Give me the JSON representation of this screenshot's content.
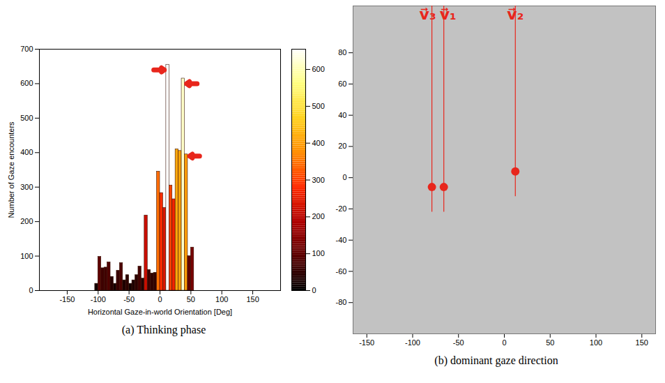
{
  "chart_data": [
    {
      "type": "histogram",
      "title": "(a) Thinking phase",
      "x_label": "Horizontal Gaze-in-world Orientation [Deg]",
      "y_label": "Number of Gaze encounters",
      "bins": [
        -105,
        -100,
        -95,
        -90,
        -85,
        -80,
        -75,
        -70,
        -65,
        -60,
        -55,
        -50,
        -45,
        -40,
        -35,
        -30,
        -25,
        -20,
        -15,
        -10,
        -5,
        0,
        5,
        10,
        15,
        20,
        25,
        30,
        35,
        40,
        45,
        50,
        55
      ],
      "values": [
        20,
        98,
        65,
        67,
        82,
        40,
        20,
        58,
        80,
        30,
        45,
        20,
        30,
        45,
        70,
        35,
        218,
        60,
        50,
        52,
        345,
        283,
        240,
        655,
        305,
        265,
        410,
        405,
        615,
        395,
        100,
        125
      ],
      "xlim": [
        -195,
        195
      ],
      "xticks": [
        -150,
        -100,
        -50,
        0,
        50,
        100,
        150
      ],
      "ylim": [
        0,
        700
      ],
      "yticks": [
        0,
        100,
        200,
        300,
        400,
        500,
        600,
        700
      ],
      "colorbar": {
        "range": [
          0,
          655
        ],
        "ticks": [
          0,
          100,
          200,
          300,
          400,
          500,
          600
        ]
      },
      "arrows": [
        {
          "x1": -10,
          "x2": 7,
          "y": 640
        },
        {
          "x1": 60,
          "x2": 43,
          "y": 600
        },
        {
          "x1": 64,
          "x2": 48,
          "y": 390
        }
      ]
    },
    {
      "type": "scatter",
      "title": "(b) dominant gaze direction",
      "labels": [
        "v⃗₃",
        "v⃗₁",
        "v⃗₂"
      ],
      "x": [
        -79,
        -66,
        12
      ],
      "values": [
        -6,
        -6,
        4
      ],
      "color": "#e8261c",
      "marker": "circle",
      "xlim": [
        -165,
        165
      ],
      "xticks": [
        -150,
        -100,
        -50,
        0,
        50,
        100,
        150
      ],
      "ylim": [
        -100,
        110
      ],
      "yticks": [
        -80,
        -60,
        -40,
        -20,
        0,
        20,
        40,
        60,
        80
      ]
    }
  ]
}
